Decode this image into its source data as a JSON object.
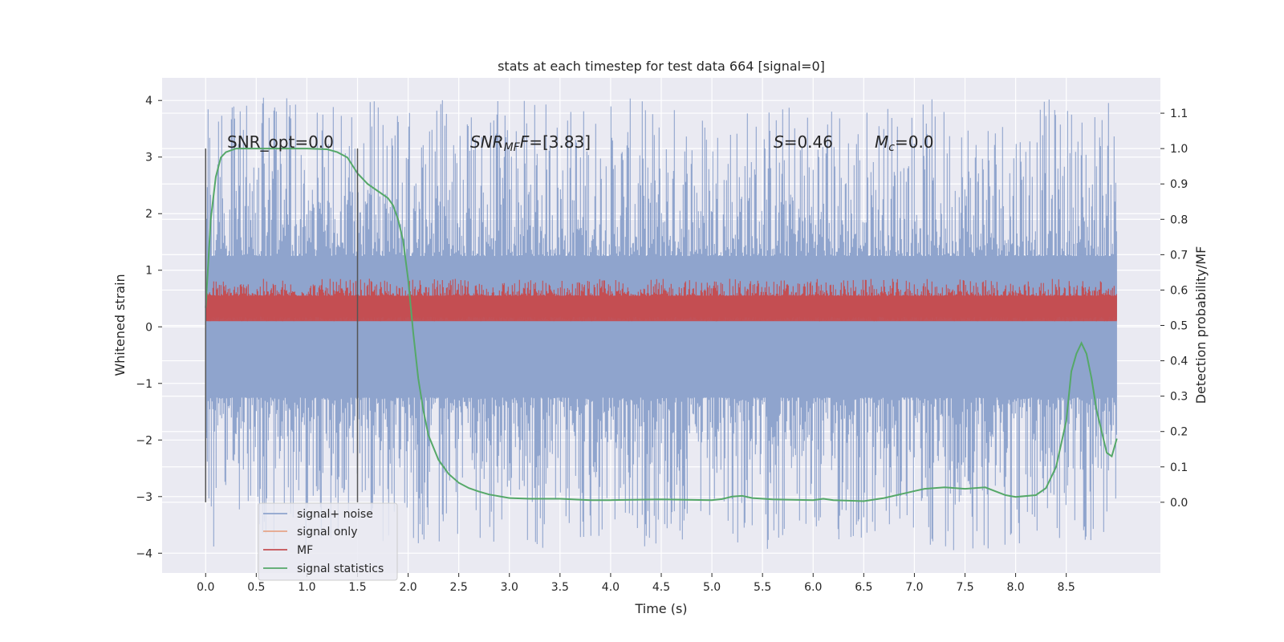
{
  "chart_data": {
    "type": "line",
    "title": "stats at each timestep for test data 664 [signal=0]",
    "xlabel": "Time (s)",
    "ylabel": "Whitened strain",
    "y2label": "Detection probability/MF",
    "xlim": [
      -0.43,
      9.43
    ],
    "ylim": [
      -4.35,
      4.4
    ],
    "y2lim": [
      -0.2,
      1.2
    ],
    "xticks": [
      "0.0",
      "0.5",
      "1.0",
      "1.5",
      "2.0",
      "2.5",
      "3.0",
      "3.5",
      "4.0",
      "4.5",
      "5.0",
      "5.5",
      "6.0",
      "6.5",
      "7.0",
      "7.5",
      "8.0",
      "8.5"
    ],
    "yticks": [
      "4",
      "3",
      "2",
      "1",
      "0",
      "−1",
      "−2",
      "−3",
      "−4"
    ],
    "y2ticks": [
      "1.1",
      "1.0",
      "0.9",
      "0.8",
      "0.7",
      "0.6",
      "0.5",
      "0.4",
      "0.3",
      "0.2",
      "0.1",
      "0.0"
    ],
    "annotations": {
      "snr_opt": "SNR_opt=0.0",
      "snr_mf_main": "SNR",
      "snr_mf_sub": "MF",
      "snr_mf_tail": "=[3.83]",
      "s_main": "S",
      "s_tail": "=0.46",
      "mc_main": "M",
      "mc_sub": "c",
      "mc_tail": "=0.0"
    },
    "vlines": [
      0.0,
      1.5
    ],
    "vline_range": [
      -3.1,
      3.15
    ],
    "noise": {
      "name": "signal+ noise",
      "t_range": [
        0.0,
        9.0
      ],
      "band": [
        -1.25,
        1.25
      ],
      "spike_range": [
        -3.95,
        4.05
      ],
      "color": "#8fa4cd"
    },
    "mf": {
      "name": "MF",
      "band": [
        0.1,
        0.55
      ],
      "spike_max": 0.85,
      "color": "#c44e52"
    },
    "signal_only": {
      "name": "signal only",
      "color": "#dd8452"
    },
    "stats": {
      "name": "signal statistics",
      "color": "#55a868",
      "points": [
        [
          0.0,
          0.55
        ],
        [
          0.05,
          0.8
        ],
        [
          0.1,
          0.92
        ],
        [
          0.15,
          0.975
        ],
        [
          0.2,
          0.99
        ],
        [
          0.3,
          1.0
        ],
        [
          0.5,
          1.0
        ],
        [
          0.8,
          1.0
        ],
        [
          1.0,
          1.0
        ],
        [
          1.2,
          0.998
        ],
        [
          1.3,
          0.99
        ],
        [
          1.4,
          0.975
        ],
        [
          1.5,
          0.93
        ],
        [
          1.6,
          0.9
        ],
        [
          1.7,
          0.88
        ],
        [
          1.8,
          0.86
        ],
        [
          1.85,
          0.84
        ],
        [
          1.9,
          0.8
        ],
        [
          1.95,
          0.74
        ],
        [
          2.0,
          0.63
        ],
        [
          2.05,
          0.48
        ],
        [
          2.1,
          0.35
        ],
        [
          2.15,
          0.26
        ],
        [
          2.2,
          0.19
        ],
        [
          2.3,
          0.12
        ],
        [
          2.4,
          0.08
        ],
        [
          2.5,
          0.055
        ],
        [
          2.6,
          0.04
        ],
        [
          2.7,
          0.03
        ],
        [
          2.8,
          0.022
        ],
        [
          3.0,
          0.012
        ],
        [
          3.2,
          0.01
        ],
        [
          3.5,
          0.01
        ],
        [
          3.8,
          0.006
        ],
        [
          4.0,
          0.006
        ],
        [
          4.5,
          0.008
        ],
        [
          5.0,
          0.006
        ],
        [
          5.1,
          0.009
        ],
        [
          5.2,
          0.016
        ],
        [
          5.3,
          0.018
        ],
        [
          5.4,
          0.012
        ],
        [
          5.6,
          0.008
        ],
        [
          5.8,
          0.007
        ],
        [
          6.0,
          0.006
        ],
        [
          6.1,
          0.01
        ],
        [
          6.2,
          0.006
        ],
        [
          6.5,
          0.003
        ],
        [
          6.7,
          0.012
        ],
        [
          6.9,
          0.025
        ],
        [
          7.1,
          0.038
        ],
        [
          7.3,
          0.042
        ],
        [
          7.5,
          0.038
        ],
        [
          7.7,
          0.042
        ],
        [
          7.9,
          0.02
        ],
        [
          8.0,
          0.015
        ],
        [
          8.2,
          0.02
        ],
        [
          8.3,
          0.04
        ],
        [
          8.4,
          0.1
        ],
        [
          8.5,
          0.23
        ],
        [
          8.55,
          0.37
        ],
        [
          8.6,
          0.42
        ],
        [
          8.65,
          0.45
        ],
        [
          8.7,
          0.42
        ],
        [
          8.75,
          0.35
        ],
        [
          8.8,
          0.26
        ],
        [
          8.85,
          0.2
        ],
        [
          8.9,
          0.14
        ],
        [
          8.95,
          0.13
        ],
        [
          9.0,
          0.18
        ]
      ]
    },
    "legend": {
      "placement": "lower-left",
      "entries": [
        "signal+ noise",
        "signal only",
        "MF",
        "signal statistics"
      ],
      "colors": [
        "#8fa4cd",
        "#e5a488",
        "#c44e52",
        "#55a868"
      ]
    },
    "grid": true
  }
}
